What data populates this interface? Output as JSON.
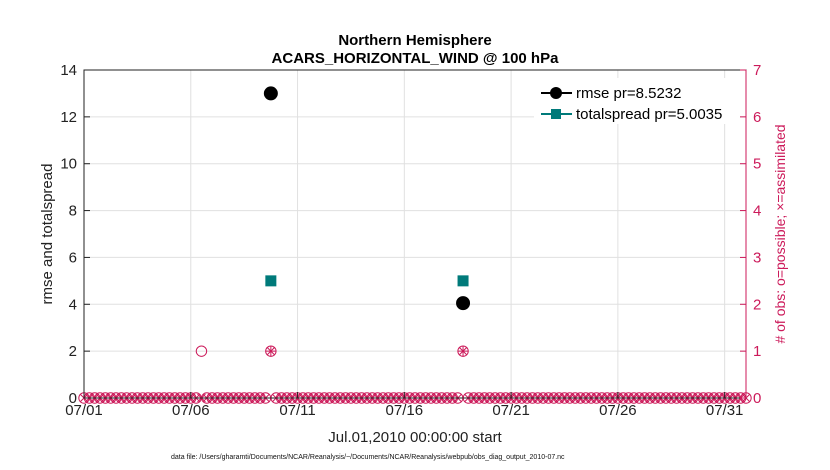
{
  "chart_data": {
    "type": "scatter",
    "title_lines": [
      "Northern Hemisphere",
      "ACARS_HORIZONTAL_WIND @ 100 hPa"
    ],
    "xlabel": "Jul.01,2010 00:00:00 start",
    "ylabel": "rmse and totalspread",
    "ylabel_right": "# of obs: o=possible; ×=assimilated",
    "footnote": "data file: /Users/gharamti/Documents/NCAR/Reanalysis/~/Documents/NCAR/Reanalysis/webpub/obs_diag_output_2010-07.nc",
    "xlim": [
      0,
      31
    ],
    "ylim": [
      0,
      14
    ],
    "ylim_right": [
      0,
      7
    ],
    "x_ticks": [
      {
        "value": 0,
        "label": "07/01"
      },
      {
        "value": 5,
        "label": "07/06"
      },
      {
        "value": 10,
        "label": "07/11"
      },
      {
        "value": 15,
        "label": "07/16"
      },
      {
        "value": 20,
        "label": "07/21"
      },
      {
        "value": 25,
        "label": "07/26"
      },
      {
        "value": 30,
        "label": "07/31"
      }
    ],
    "y_ticks": [
      "0",
      "2",
      "4",
      "6",
      "8",
      "10",
      "12",
      "14"
    ],
    "y_ticks_right": [
      "0",
      "1",
      "2",
      "3",
      "4",
      "5",
      "6",
      "7"
    ],
    "bin_step_days": 0.25,
    "series": [
      {
        "name": "rmse",
        "legend": "rmse pr=8.5232",
        "color": "#000000",
        "marker": "circle",
        "points": [
          {
            "x": 8.75,
            "y": 13.0
          },
          {
            "x": 17.75,
            "y": 4.05
          }
        ]
      },
      {
        "name": "totalspread",
        "legend": "totalspread pr=5.0035",
        "color": "#007a7a",
        "marker": "square",
        "points": [
          {
            "x": 8.75,
            "y": 5.0
          },
          {
            "x": 17.75,
            "y": 5.0
          }
        ]
      }
    ],
    "obs_possible": {
      "color": "#cc1a5a",
      "nonzero": [
        {
          "x": 5.5,
          "count": 1
        },
        {
          "x": 8.75,
          "count": 1
        },
        {
          "x": 17.75,
          "count": 1
        }
      ]
    },
    "obs_assimilated": {
      "color": "#cc1a5a",
      "nonzero": [
        {
          "x": 8.75,
          "count": 1
        },
        {
          "x": 17.75,
          "count": 1
        }
      ]
    }
  }
}
